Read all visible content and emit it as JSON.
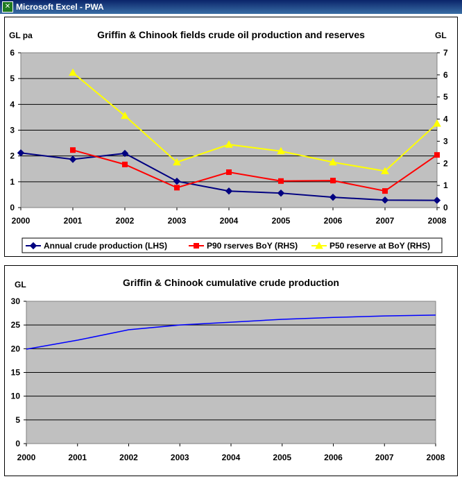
{
  "window": {
    "title": "Microsoft Excel - PWA",
    "icon": "excel-icon"
  },
  "chart_data": [
    {
      "type": "line",
      "title": "Griffin & Chinook fields crude oil production and reserves",
      "ylabel_left": "GL pa",
      "ylabel_right": "GL",
      "x": [
        "2000",
        "2001",
        "2002",
        "2003",
        "2004",
        "2005",
        "2006",
        "2007",
        "2008"
      ],
      "ylim_left": [
        0,
        6
      ],
      "ylim_right": [
        0,
        7
      ],
      "yticks_left": [
        "0",
        "1",
        "2",
        "3",
        "4",
        "5",
        "6"
      ],
      "yticks_right": [
        "0",
        "1",
        "2",
        "3",
        "4",
        "5",
        "6",
        "7"
      ],
      "grid": true,
      "plot_background": "#c0c0c0",
      "legend_position": "bottom",
      "series": [
        {
          "name": "Annual crude production (LHS)",
          "axis": "left",
          "color": "#000080",
          "marker": "diamond",
          "values": [
            2.12,
            1.87,
            2.1,
            1.02,
            0.64,
            0.56,
            0.4,
            0.29,
            0.28
          ]
        },
        {
          "name": "P90 rserves BoY (RHS)",
          "axis": "right",
          "color": "#ff0000",
          "marker": "square",
          "values": [
            null,
            2.6,
            1.95,
            0.9,
            1.6,
            1.2,
            1.22,
            0.75,
            2.38
          ]
        },
        {
          "name": "P50 reserve at BoY (RHS)",
          "axis": "right",
          "color": "#ffff00",
          "marker": "triangle",
          "values": [
            null,
            6.1,
            4.15,
            2.05,
            2.85,
            2.55,
            2.05,
            1.65,
            3.8
          ]
        }
      ]
    },
    {
      "type": "line",
      "title": "Griffin & Chinook cumulative crude production",
      "ylabel": "GL",
      "x": [
        "2000",
        "2001",
        "2002",
        "2003",
        "2004",
        "2005",
        "2006",
        "2007",
        "2008"
      ],
      "ylim": [
        0,
        30
      ],
      "yticks": [
        "0",
        "5",
        "10",
        "15",
        "20",
        "25",
        "30"
      ],
      "grid": true,
      "plot_background": "#c0c0c0",
      "series": [
        {
          "color": "#0000ff",
          "values": [
            19.9,
            21.8,
            24.0,
            25.0,
            25.6,
            26.2,
            26.6,
            26.9,
            27.1
          ]
        }
      ]
    }
  ]
}
